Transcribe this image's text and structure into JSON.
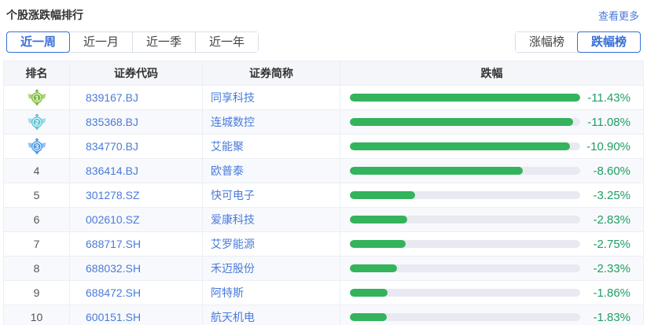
{
  "page": {
    "title": "个股涨跌幅排行",
    "more_link": "查看更多"
  },
  "period_tabs": [
    {
      "key": "week",
      "label": "近一周",
      "selected": true
    },
    {
      "key": "month",
      "label": "近一月",
      "selected": false
    },
    {
      "key": "quarter",
      "label": "近一季",
      "selected": false
    },
    {
      "key": "year",
      "label": "近一年",
      "selected": false
    }
  ],
  "board_tabs": [
    {
      "key": "gainers",
      "label": "涨幅榜",
      "selected": false
    },
    {
      "key": "losers",
      "label": "跌幅榜",
      "selected": true
    }
  ],
  "table": {
    "columns": [
      "排名",
      "证券代码",
      "证券简称",
      "跌幅"
    ],
    "column_keys": [
      "rank",
      "code",
      "name",
      "change"
    ],
    "rows": [
      {
        "rank": 1,
        "code": "839167.BJ",
        "name": "同享科技",
        "change": "-11.43%",
        "value": 11.43
      },
      {
        "rank": 2,
        "code": "835368.BJ",
        "name": "连城数控",
        "change": "-11.08%",
        "value": 11.08
      },
      {
        "rank": 3,
        "code": "834770.BJ",
        "name": "艾能聚",
        "change": "-10.90%",
        "value": 10.9
      },
      {
        "rank": 4,
        "code": "836414.BJ",
        "name": "欧普泰",
        "change": "-8.60%",
        "value": 8.6
      },
      {
        "rank": 5,
        "code": "301278.SZ",
        "name": "快可电子",
        "change": "-3.25%",
        "value": 3.25
      },
      {
        "rank": 6,
        "code": "002610.SZ",
        "name": "爱康科技",
        "change": "-2.83%",
        "value": 2.83
      },
      {
        "rank": 7,
        "code": "688717.SH",
        "name": "艾罗能源",
        "change": "-2.75%",
        "value": 2.75
      },
      {
        "rank": 8,
        "code": "688032.SH",
        "name": "禾迈股份",
        "change": "-2.33%",
        "value": 2.33
      },
      {
        "rank": 9,
        "code": "688472.SH",
        "name": "阿特斯",
        "change": "-1.86%",
        "value": 1.86
      },
      {
        "rank": 10,
        "code": "600151.SH",
        "name": "航天机电",
        "change": "-1.83%",
        "value": 1.83
      }
    ]
  },
  "colors": {
    "accent_blue": "#3a6fd8",
    "link_blue": "#4a7bdb",
    "bar_green": "#33b35c",
    "percent_green": "#1f9e63",
    "bar_track": "#e9e9f2",
    "medals": [
      {
        "main": "#7ebc3e",
        "light": "#a9d878"
      },
      {
        "main": "#5fc4d4",
        "light": "#9adfe8"
      },
      {
        "main": "#4f9bea",
        "light": "#90c4f5"
      }
    ]
  }
}
